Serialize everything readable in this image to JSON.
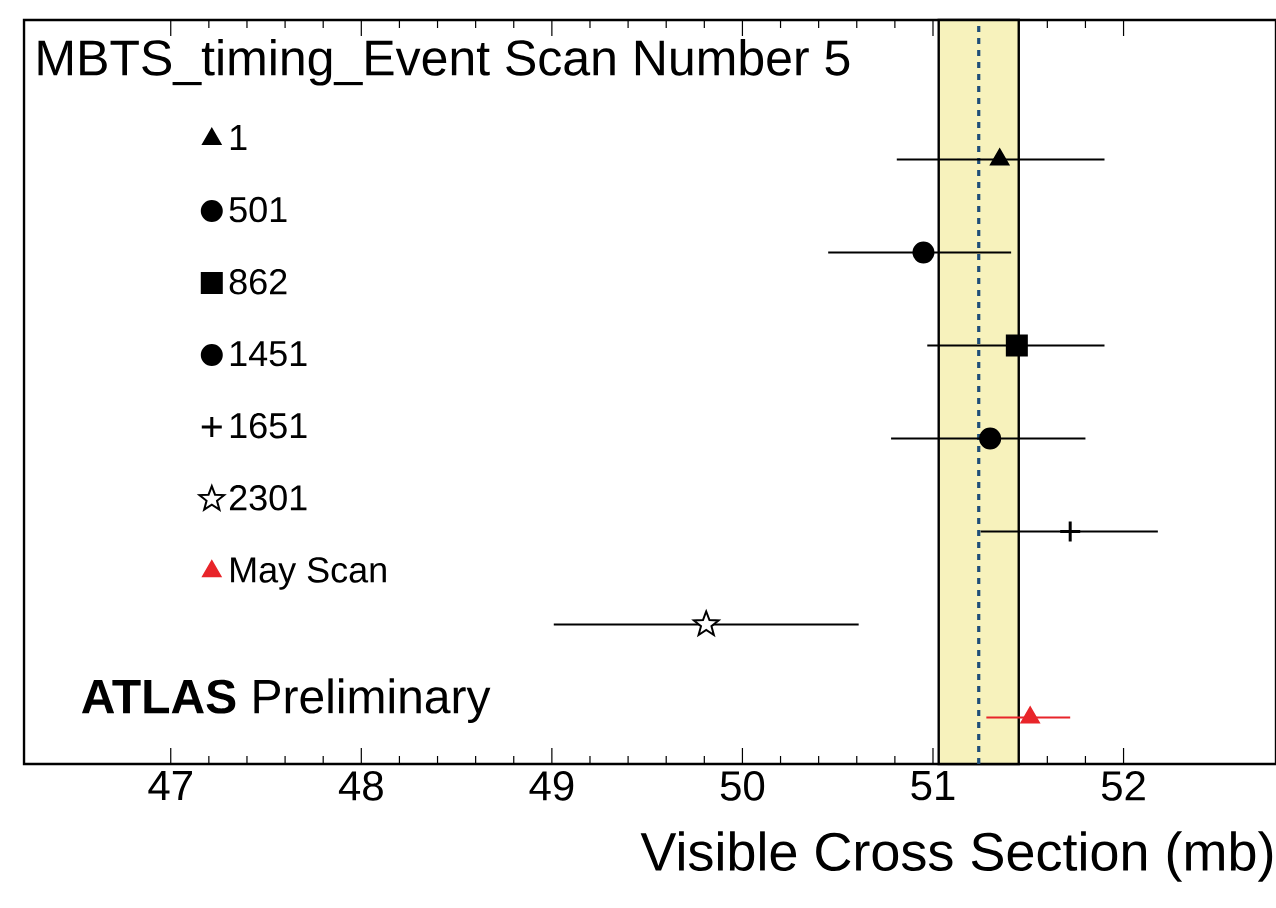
{
  "chart_data": {
    "type": "scatter",
    "orientation": "horizontal",
    "title": "MBTS_timing_Event  Scan Number 5",
    "xlabel": "Visible Cross Section (mb)",
    "categories": [
      null,
      null,
      null,
      null,
      null,
      null,
      null,
      null
    ],
    "series": [
      {
        "name": "1",
        "color": "#000000",
        "marker": "triangle",
        "values": [
          null,
          51.35,
          null,
          null,
          null,
          null,
          null,
          null
        ],
        "errors": [
          null,
          [
            50.81,
            51.9
          ],
          null,
          null,
          null,
          null,
          null,
          null
        ]
      },
      {
        "name": "501",
        "color": "#000000",
        "marker": "circle",
        "values": [
          null,
          null,
          50.95,
          null,
          null,
          null,
          null,
          null
        ],
        "errors": [
          null,
          null,
          [
            50.45,
            51.41
          ],
          null,
          null,
          null,
          null,
          null
        ]
      },
      {
        "name": "862",
        "color": "#000000",
        "marker": "square",
        "values": [
          null,
          null,
          null,
          51.44,
          null,
          null,
          null,
          null
        ],
        "errors": [
          null,
          null,
          null,
          [
            50.97,
            51.9
          ],
          null,
          null,
          null,
          null
        ]
      },
      {
        "name": "1451",
        "color": "#000000",
        "marker": "circle",
        "values": [
          null,
          null,
          null,
          null,
          51.3,
          null,
          null,
          null
        ],
        "errors": [
          null,
          null,
          null,
          null,
          [
            50.78,
            51.8
          ],
          null,
          null,
          null
        ]
      },
      {
        "name": "1651",
        "color": "#000000",
        "marker": "cross",
        "values": [
          null,
          null,
          null,
          null,
          null,
          51.72,
          null,
          null
        ],
        "errors": [
          null,
          null,
          null,
          null,
          null,
          [
            51.25,
            52.18
          ],
          null,
          null
        ]
      },
      {
        "name": "2301",
        "color": "#000000",
        "marker": "star",
        "values": [
          null,
          null,
          null,
          null,
          null,
          null,
          49.81,
          null
        ],
        "errors": [
          null,
          null,
          null,
          null,
          null,
          null,
          [
            49.01,
            50.61
          ],
          null
        ]
      },
      {
        "name": "May Scan",
        "color": "#e8252a",
        "marker": "triangle",
        "values": [
          null,
          null,
          null,
          null,
          null,
          null,
          null,
          51.51
        ],
        "errors": [
          null,
          null,
          null,
          null,
          null,
          null,
          null,
          [
            51.28,
            51.72
          ]
        ]
      }
    ],
    "bands": [
      {
        "axis": "x",
        "from": 51.03,
        "to": 51.45,
        "color": "#f7f2bc"
      }
    ],
    "ref_lines": [
      {
        "axis": "x",
        "value": 51.24,
        "color": "#1f4e79",
        "line_style": "dashed"
      }
    ],
    "xlim": [
      46.23,
      52.8
    ],
    "xticks": [
      47,
      48,
      49,
      50,
      51,
      52
    ],
    "tick_labels": "x",
    "grid": false,
    "legend": "top left",
    "annotations": [
      "**ATLAS** Preliminary"
    ]
  }
}
